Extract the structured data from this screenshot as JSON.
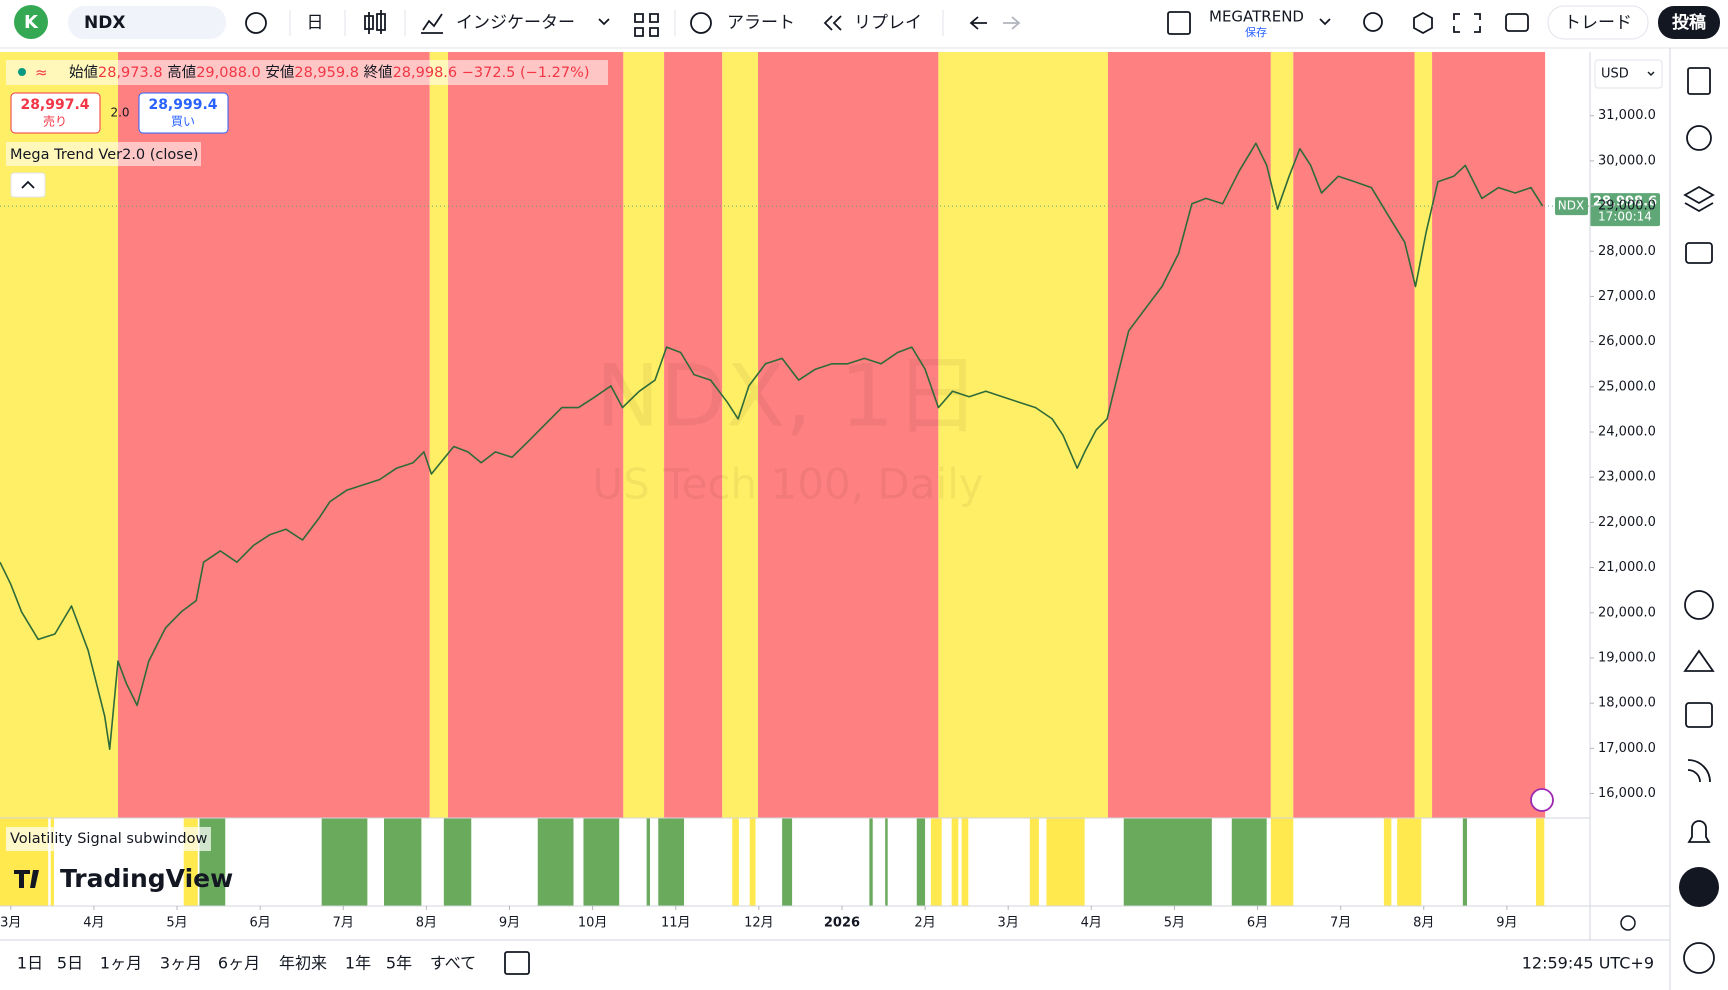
{
  "toolbar": {
    "avatar": "K",
    "symbol": "NDX",
    "interval": "日",
    "indicators": "インジケーター",
    "alert": "アラート",
    "replay": "リプレイ",
    "layout_name": "MEGATREND",
    "save_status": "保存",
    "trade": "トレード",
    "publish": "投稿"
  },
  "legend": {
    "open_label": "始値",
    "open": "28,973.8",
    "high_label": "高値",
    "high": "29,088.0",
    "low_label": "安値",
    "low": "28,959.8",
    "close_label": "終値",
    "close": "28,998.6",
    "change": "−372.5 (−1.27%)",
    "sell_price": "28,997.4",
    "sell_label": "売り",
    "spread": "2.0",
    "buy_price": "28,999.4",
    "buy_label": "買い",
    "indicator": "Mega Trend Ver2.0 (close)",
    "subwindow": "Volatility Signal subwindow"
  },
  "watermark": {
    "symbol": "NDX, 1日",
    "description": "US Tech 100, Daily",
    "brand": "TradingView"
  },
  "chart_data": {
    "type": "line",
    "color": "#2f6b3a",
    "currency": "USD",
    "xlim": [
      -0.13,
      19.0
    ],
    "ylim": [
      15458,
      32410
    ],
    "xticks": [
      {
        "value": 0,
        "label": "3月"
      },
      {
        "value": 1,
        "label": "4月"
      },
      {
        "value": 2,
        "label": "5月"
      },
      {
        "value": 3,
        "label": "6月"
      },
      {
        "value": 4,
        "label": "7月"
      },
      {
        "value": 5,
        "label": "8月"
      },
      {
        "value": 6,
        "label": "9月"
      },
      {
        "value": 7,
        "label": "10月"
      },
      {
        "value": 8,
        "label": "11月"
      },
      {
        "value": 9,
        "label": "12月"
      },
      {
        "value": 10,
        "label": "2026",
        "bold": true
      },
      {
        "value": 11,
        "label": "2月"
      },
      {
        "value": 12,
        "label": "3月"
      },
      {
        "value": 13,
        "label": "4月"
      },
      {
        "value": 14,
        "label": "5月"
      },
      {
        "value": 15,
        "label": "6月"
      },
      {
        "value": 16,
        "label": "7月"
      },
      {
        "value": 17,
        "label": "8月"
      },
      {
        "value": 18,
        "label": "9月"
      }
    ],
    "yticks": [
      {
        "value": 31000,
        "label": "31,000.0"
      },
      {
        "value": 30000,
        "label": "30,000.0"
      },
      {
        "value": 29000,
        "label": "29,000.0"
      },
      {
        "value": 28000,
        "label": "28,000.0"
      },
      {
        "value": 27000,
        "label": "27,000.0"
      },
      {
        "value": 26000,
        "label": "26,000.0"
      },
      {
        "value": 25000,
        "label": "25,000.0"
      },
      {
        "value": 24000,
        "label": "24,000.0"
      },
      {
        "value": 23000,
        "label": "23,000.0"
      },
      {
        "value": 22000,
        "label": "22,000.0"
      },
      {
        "value": 21000,
        "label": "21,000.0"
      },
      {
        "value": 20000,
        "label": "20,000.0"
      },
      {
        "value": 19000,
        "label": "19,000.0"
      },
      {
        "value": 18000,
        "label": "18,000.0"
      },
      {
        "value": 17000,
        "label": "17,000.0"
      },
      {
        "value": 16000,
        "label": "16,000.0"
      }
    ],
    "x": [
      -0.13,
      0,
      0.13,
      0.33,
      0.53,
      0.73,
      0.93,
      1.13,
      1.19,
      1.29,
      1.39,
      1.52,
      1.66,
      1.86,
      2.05,
      2.23,
      2.32,
      2.52,
      2.72,
      2.92,
      3.12,
      3.31,
      3.51,
      3.71,
      3.84,
      4.04,
      4.24,
      4.44,
      4.64,
      4.84,
      4.97,
      5.06,
      5.17,
      5.33,
      5.5,
      5.66,
      5.83,
      6.03,
      6.23,
      6.43,
      6.63,
      6.83,
      7.03,
      7.22,
      7.36,
      7.56,
      7.75,
      7.89,
      8.06,
      8.22,
      8.42,
      8.62,
      8.75,
      8.88,
      9.08,
      9.28,
      9.48,
      9.68,
      9.88,
      10.07,
      10.27,
      10.47,
      10.67,
      10.84,
      11.0,
      11.16,
      11.33,
      11.53,
      11.73,
      11.93,
      12.13,
      12.33,
      12.53,
      12.66,
      12.83,
      12.92,
      13.06,
      13.19,
      13.32,
      13.45,
      13.65,
      13.85,
      14.05,
      14.21,
      14.38,
      14.58,
      14.78,
      14.98,
      15.11,
      15.24,
      15.38,
      15.51,
      15.64,
      15.77,
      15.97,
      16.17,
      16.37,
      16.57,
      16.77,
      16.9,
      17.03,
      17.17,
      17.36,
      17.5,
      17.7,
      17.9,
      18.1,
      18.29,
      18.43
    ],
    "values": [
      21120,
      20630,
      20020,
      19410,
      19530,
      20150,
      19170,
      17710,
      16980,
      18930,
      18440,
      17950,
      18930,
      19660,
      20020,
      20270,
      21120,
      21370,
      21120,
      21490,
      21730,
      21850,
      21610,
      22100,
      22460,
      22710,
      22830,
      22950,
      23200,
      23320,
      23560,
      23070,
      23320,
      23680,
      23560,
      23320,
      23560,
      23440,
      23800,
      24170,
      24540,
      24540,
      24780,
      25020,
      24540,
      24900,
      25150,
      25880,
      25760,
      25270,
      25150,
      24660,
      24290,
      25020,
      25510,
      25630,
      25150,
      25390,
      25510,
      25510,
      25630,
      25510,
      25760,
      25880,
      25390,
      24540,
      24900,
      24780,
      24900,
      24780,
      24660,
      24540,
      24290,
      23930,
      23200,
      23560,
      24050,
      24290,
      25270,
      26240,
      26730,
      27220,
      27950,
      29050,
      29170,
      29050,
      29780,
      30390,
      29900,
      28930,
      29660,
      30270,
      29900,
      29290,
      29660,
      29540,
      29410,
      28800,
      28200,
      27220,
      28440,
      29540,
      29660,
      29900,
      29170,
      29410,
      29290,
      29410,
      28998.6
    ],
    "price_tag": {
      "symbol": "NDX",
      "value": 28998.6,
      "label": "28,998.6",
      "countdown": "17:00:14",
      "color": "#5fa777"
    },
    "bands": [
      {
        "start": -0.13,
        "end": 1.29,
        "color": "#ffef66"
      },
      {
        "start": 1.29,
        "end": 5.04,
        "color": "#ff8080"
      },
      {
        "start": 5.04,
        "end": 5.26,
        "color": "#ffef66"
      },
      {
        "start": 5.26,
        "end": 7.37,
        "color": "#ff8080"
      },
      {
        "start": 7.37,
        "end": 7.86,
        "color": "#ffef66"
      },
      {
        "start": 7.86,
        "end": 8.56,
        "color": "#ff8080"
      },
      {
        "start": 8.56,
        "end": 8.99,
        "color": "#ffef66"
      },
      {
        "start": 8.99,
        "end": 11.16,
        "color": "#ff8080"
      },
      {
        "start": 11.16,
        "end": 13.2,
        "color": "#ffef66"
      },
      {
        "start": 13.2,
        "end": 15.16,
        "color": "#ff8080"
      },
      {
        "start": 15.16,
        "end": 15.43,
        "color": "#ffef66"
      },
      {
        "start": 15.43,
        "end": 16.89,
        "color": "#ff8080"
      },
      {
        "start": 16.89,
        "end": 17.1,
        "color": "#ffef66"
      },
      {
        "start": 17.1,
        "end": 18.46,
        "color": "#ff8080"
      }
    ],
    "sub_bands": [
      {
        "start": 2.27,
        "end": 2.58,
        "color": "#6aaa5c"
      },
      {
        "start": 3.74,
        "end": 4.29,
        "color": "#6aaa5c"
      },
      {
        "start": 4.49,
        "end": 4.94,
        "color": "#6aaa5c"
      },
      {
        "start": 5.21,
        "end": 5.54,
        "color": "#6aaa5c"
      },
      {
        "start": 6.34,
        "end": 6.77,
        "color": "#6aaa5c"
      },
      {
        "start": 6.89,
        "end": 7.32,
        "color": "#6aaa5c"
      },
      {
        "start": 7.65,
        "end": 7.69,
        "color": "#6aaa5c"
      },
      {
        "start": 7.79,
        "end": 8.1,
        "color": "#6aaa5c"
      },
      {
        "start": 9.28,
        "end": 9.4,
        "color": "#6aaa5c"
      },
      {
        "start": 10.33,
        "end": 10.37,
        "color": "#6aaa5c"
      },
      {
        "start": 10.52,
        "end": 10.55,
        "color": "#6aaa5c"
      },
      {
        "start": 10.9,
        "end": 11.0,
        "color": "#6aaa5c"
      },
      {
        "start": 13.39,
        "end": 14.45,
        "color": "#6aaa5c"
      },
      {
        "start": 14.69,
        "end": 15.11,
        "color": "#6aaa5c"
      },
      {
        "start": 17.47,
        "end": 17.52,
        "color": "#6aaa5c"
      },
      {
        "start": -0.13,
        "end": 0.45,
        "color": "#ffe94f"
      },
      {
        "start": 0.48,
        "end": 0.52,
        "color": "#ffe94f"
      },
      {
        "start": 2.08,
        "end": 2.25,
        "color": "#ffe94f"
      },
      {
        "start": 8.68,
        "end": 8.76,
        "color": "#ffe94f"
      },
      {
        "start": 8.89,
        "end": 8.96,
        "color": "#ffe94f"
      },
      {
        "start": 11.07,
        "end": 11.2,
        "color": "#ffe94f"
      },
      {
        "start": 11.32,
        "end": 11.4,
        "color": "#ffe94f"
      },
      {
        "start": 11.44,
        "end": 11.52,
        "color": "#ffe94f"
      },
      {
        "start": 12.26,
        "end": 12.37,
        "color": "#ffe94f"
      },
      {
        "start": 12.46,
        "end": 12.92,
        "color": "#ffe94f"
      },
      {
        "start": 15.16,
        "end": 15.43,
        "color": "#ffe94f"
      },
      {
        "start": 16.52,
        "end": 16.61,
        "color": "#ffe94f"
      },
      {
        "start": 16.68,
        "end": 16.97,
        "color": "#ffe94f"
      },
      {
        "start": 18.35,
        "end": 18.45,
        "color": "#ffe94f"
      }
    ]
  },
  "bottom_bar": {
    "ranges": [
      "1日",
      "5日",
      "1ヶ月",
      "3ヶ月",
      "6ヶ月",
      "年初来",
      "1年",
      "5年",
      "すべて"
    ],
    "clock": "12:59:45 UTC+9"
  }
}
